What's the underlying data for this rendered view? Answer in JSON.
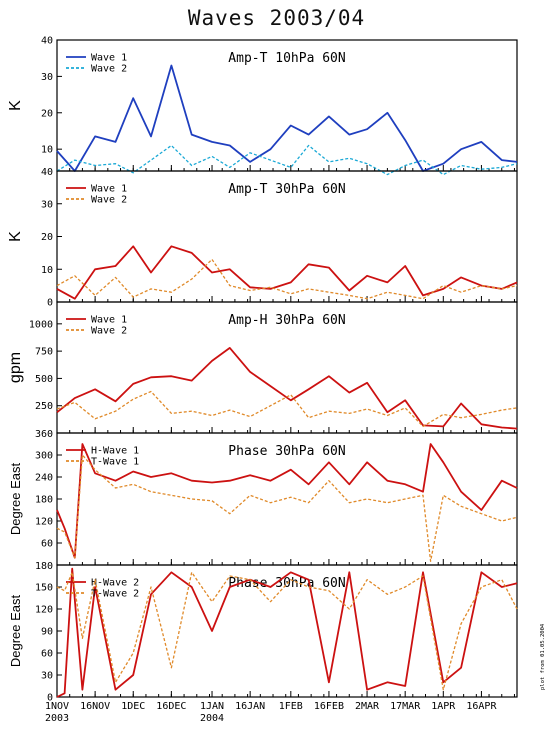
{
  "title": "Waves 2003/04",
  "stamp": "plot from 01.05.2004",
  "colors": {
    "wave1_blue": "#1f3fbf",
    "wave2_cyan": "#1aa9d6",
    "wave1_red": "#cc1111",
    "wave2_orange": "#e08a2a"
  },
  "chart_data": [
    {
      "type": "line",
      "title": "Amp-T 10hPa 60N",
      "ylabel": "K",
      "ylim": [
        4,
        40
      ],
      "yticks": [
        10,
        20,
        30,
        40
      ],
      "ytick_labels": [
        "10",
        "20",
        "30",
        "40"
      ],
      "bottom_label": "40",
      "legend_position": "top-left",
      "x_dates": [
        "2003-11-01",
        "2003-11-08",
        "2003-11-16",
        "2003-11-24",
        "2003-12-01",
        "2003-12-08",
        "2003-12-16",
        "2003-12-24",
        "2004-01-01",
        "2004-01-08",
        "2004-01-16",
        "2004-01-24",
        "2004-02-01",
        "2004-02-08",
        "2004-02-16",
        "2004-02-24",
        "2004-03-02",
        "2004-03-10",
        "2004-03-17",
        "2004-03-24",
        "2004-04-01",
        "2004-04-08",
        "2004-04-16",
        "2004-04-24",
        "2004-04-30"
      ],
      "series": [
        {
          "name": "Wave 1",
          "color": "#1f3fbf",
          "dash": false,
          "values": [
            9.5,
            4.0,
            13.5,
            12.0,
            24.0,
            13.5,
            33.0,
            14.0,
            12.0,
            11.0,
            6.5,
            10.0,
            16.5,
            14.0,
            19.0,
            14.0,
            15.5,
            20.0,
            12.5,
            4.0,
            6.0,
            10.0,
            12.0,
            7.0,
            6.5
          ]
        },
        {
          "name": "Wave 2",
          "color": "#1aa9d6",
          "dash": true,
          "values": [
            4.0,
            7.0,
            5.5,
            6.0,
            3.5,
            7.0,
            11.0,
            5.5,
            8.0,
            5.0,
            9.0,
            7.0,
            5.0,
            11.0,
            6.5,
            7.5,
            6.0,
            3.0,
            5.5,
            7.0,
            3.0,
            5.5,
            4.5,
            5.0,
            6.0
          ]
        }
      ]
    },
    {
      "type": "line",
      "title": "Amp-T 30hPa 60N",
      "ylabel": "K",
      "ylim": [
        0,
        40
      ],
      "yticks": [
        0,
        10,
        20,
        30
      ],
      "ytick_labels": [
        "0",
        "10",
        "20",
        "30"
      ],
      "legend_position": "top-left",
      "x_dates": [
        "2003-11-01",
        "2003-11-08",
        "2003-11-16",
        "2003-11-24",
        "2003-12-01",
        "2003-12-08",
        "2003-12-16",
        "2003-12-24",
        "2004-01-01",
        "2004-01-08",
        "2004-01-16",
        "2004-01-24",
        "2004-02-01",
        "2004-02-08",
        "2004-02-16",
        "2004-02-24",
        "2004-03-02",
        "2004-03-10",
        "2004-03-17",
        "2004-03-24",
        "2004-04-01",
        "2004-04-08",
        "2004-04-16",
        "2004-04-24",
        "2004-04-30"
      ],
      "series": [
        {
          "name": "Wave 1",
          "color": "#cc1111",
          "dash": false,
          "values": [
            4.0,
            1.0,
            10.0,
            11.0,
            17.0,
            9.0,
            17.0,
            15.0,
            9.0,
            10.0,
            4.5,
            4.0,
            6.0,
            11.5,
            10.5,
            3.5,
            8.0,
            6.0,
            11.0,
            2.0,
            4.0,
            7.5,
            5.0,
            4.0,
            6.0
          ]
        },
        {
          "name": "Wave 2",
          "color": "#e08a2a",
          "dash": true,
          "values": [
            5.0,
            8.0,
            2.0,
            7.5,
            1.5,
            4.0,
            3.0,
            7.0,
            13.0,
            5.0,
            3.5,
            4.5,
            2.5,
            4.0,
            3.0,
            2.0,
            1.0,
            3.0,
            2.0,
            1.0,
            5.0,
            3.0,
            5.0,
            4.0,
            5.0
          ]
        }
      ]
    },
    {
      "type": "line",
      "title": "Amp-H 30hPa 60N",
      "ylabel": "gpm",
      "ylim": [
        0,
        1200
      ],
      "yticks": [
        250,
        500,
        750,
        1000
      ],
      "ytick_labels": [
        "250",
        "500",
        "750",
        "1000"
      ],
      "legend_position": "top-left",
      "x_dates": [
        "2003-11-01",
        "2003-11-08",
        "2003-11-16",
        "2003-11-24",
        "2003-12-01",
        "2003-12-08",
        "2003-12-16",
        "2003-12-24",
        "2004-01-01",
        "2004-01-08",
        "2004-01-16",
        "2004-01-24",
        "2004-02-01",
        "2004-02-08",
        "2004-02-16",
        "2004-02-24",
        "2004-03-02",
        "2004-03-10",
        "2004-03-17",
        "2004-03-24",
        "2004-04-01",
        "2004-04-08",
        "2004-04-16",
        "2004-04-24",
        "2004-04-30"
      ],
      "series": [
        {
          "name": "Wave 1",
          "color": "#cc1111",
          "dash": false,
          "values": [
            190,
            320,
            400,
            290,
            450,
            510,
            520,
            480,
            660,
            780,
            560,
            430,
            300,
            400,
            520,
            370,
            460,
            190,
            300,
            70,
            60,
            270,
            80,
            50,
            40
          ]
        },
        {
          "name": "Wave 2",
          "color": "#e08a2a",
          "dash": true,
          "values": [
            220,
            280,
            130,
            200,
            310,
            380,
            180,
            200,
            160,
            210,
            150,
            250,
            350,
            140,
            200,
            180,
            220,
            160,
            230,
            60,
            170,
            140,
            170,
            210,
            230
          ]
        }
      ]
    },
    {
      "type": "line",
      "title": "Phase 30hPa 60N",
      "ylabel": "Degree East",
      "ylim": [
        0,
        360
      ],
      "yticks": [
        60,
        120,
        180,
        240,
        300
      ],
      "ytick_labels": [
        "60",
        "120",
        "180",
        "240",
        "300"
      ],
      "top_label": "360",
      "legend_position": "top-left",
      "x_dates": [
        "2003-11-01",
        "2003-11-04",
        "2003-11-08",
        "2003-11-11",
        "2003-11-16",
        "2003-11-24",
        "2003-12-01",
        "2003-12-08",
        "2003-12-16",
        "2003-12-24",
        "2004-01-01",
        "2004-01-08",
        "2004-01-16",
        "2004-01-24",
        "2004-02-01",
        "2004-02-08",
        "2004-02-16",
        "2004-02-24",
        "2004-03-02",
        "2004-03-10",
        "2004-03-17",
        "2004-03-24",
        "2004-03-27",
        "2004-04-01",
        "2004-04-08",
        "2004-04-16",
        "2004-04-24",
        "2004-04-30"
      ],
      "series": [
        {
          "name": "H-Wave 1",
          "color": "#cc1111",
          "dash": false,
          "values": [
            150,
            100,
            20,
            330,
            250,
            230,
            255,
            240,
            250,
            230,
            225,
            230,
            245,
            230,
            260,
            220,
            280,
            220,
            280,
            230,
            220,
            200,
            330,
            280,
            200,
            150,
            230,
            210
          ]
        },
        {
          "name": "T-Wave 1",
          "color": "#e08a2a",
          "dash": true,
          "values": [
            100,
            90,
            20,
            300,
            260,
            210,
            220,
            200,
            190,
            180,
            175,
            140,
            190,
            170,
            185,
            170,
            230,
            170,
            180,
            170,
            180,
            190,
            10,
            190,
            160,
            140,
            120,
            130
          ]
        }
      ]
    },
    {
      "type": "line",
      "title": "Phase 30hPa 60N",
      "ylabel": "Degree East",
      "ylim": [
        0,
        180
      ],
      "yticks": [
        0,
        30,
        60,
        90,
        120,
        150
      ],
      "ytick_labels": [
        "0",
        "30",
        "60",
        "90",
        "120",
        "150"
      ],
      "top_label": "180",
      "legend_position": "top-left",
      "x_dates": [
        "2003-11-01",
        "2003-11-04",
        "2003-11-07",
        "2003-11-11",
        "2003-11-16",
        "2003-11-24",
        "2003-12-01",
        "2003-12-08",
        "2003-12-16",
        "2003-12-24",
        "2004-01-01",
        "2004-01-08",
        "2004-01-16",
        "2004-01-24",
        "2004-02-01",
        "2004-02-08",
        "2004-02-16",
        "2004-02-24",
        "2004-03-02",
        "2004-03-10",
        "2004-03-17",
        "2004-03-24",
        "2004-04-01",
        "2004-04-08",
        "2004-04-16",
        "2004-04-24",
        "2004-04-30"
      ],
      "series": [
        {
          "name": "H-Wave 2",
          "color": "#cc1111",
          "dash": false,
          "values": [
            0,
            5,
            175,
            10,
            150,
            10,
            30,
            140,
            170,
            150,
            90,
            150,
            160,
            150,
            170,
            160,
            20,
            170,
            10,
            20,
            15,
            170,
            20,
            40,
            170,
            150,
            155
          ]
        },
        {
          "name": "T-Wave 2",
          "color": "#e08a2a",
          "dash": true,
          "values": [
            150,
            145,
            170,
            80,
            160,
            20,
            60,
            150,
            40,
            170,
            130,
            165,
            160,
            130,
            160,
            150,
            145,
            120,
            160,
            140,
            150,
            165,
            10,
            100,
            150,
            160,
            120
          ]
        }
      ]
    }
  ],
  "x_axis": {
    "range": [
      "2003-11-01",
      "2004-04-30"
    ],
    "tick_dates": [
      "2003-11-01",
      "2003-11-16",
      "2003-12-01",
      "2003-12-16",
      "2004-01-01",
      "2004-01-16",
      "2004-02-01",
      "2004-02-16",
      "2004-03-02",
      "2004-03-17",
      "2004-04-01",
      "2004-04-16"
    ],
    "tick_labels": [
      "1NOV",
      "16NOV",
      "1DEC",
      "16DEC",
      "1JAN",
      "16JAN",
      "1FEB",
      "16FEB",
      "2MAR",
      "17MAR",
      "1APR",
      "16APR"
    ],
    "year_labels": [
      {
        "date": "2003-11-01",
        "label": "2003"
      },
      {
        "date": "2004-01-01",
        "label": "2004"
      }
    ]
  }
}
